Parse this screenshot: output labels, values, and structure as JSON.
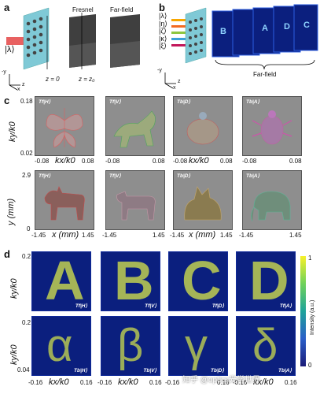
{
  "panels": {
    "a": {
      "letter": "a",
      "input_label": "|λ⟩",
      "plane_labels": [
        "Fresnel",
        "Far-field"
      ],
      "z_labels": [
        "z = 0",
        "z = z₀"
      ],
      "axes": [
        "-y",
        "x",
        "z"
      ]
    },
    "b": {
      "letter": "b",
      "input_states": [
        "|λ⟩",
        "|η⟩",
        "|ζ⟩",
        "|κ⟩",
        "|ξ⟩"
      ],
      "far_field_letters": [
        "A",
        "D",
        "C",
        "B"
      ],
      "far_field_label": "Far-field",
      "axes": [
        "-y",
        "x",
        "z"
      ]
    },
    "c": {
      "letter": "c",
      "row1": {
        "ylabel": "ky/k0",
        "yticks": [
          "0.18",
          "0.02"
        ],
        "xticks": [
          "-0.08",
          "0.08"
        ],
        "xlabel": "kx/k0",
        "tiles": [
          {
            "label": "Tf|H⟩",
            "name": "butterfly"
          },
          {
            "label": "Tf|V⟩",
            "name": "cat"
          },
          {
            "label": "Tb|D⟩",
            "name": "turtle"
          },
          {
            "label": "Tb|A⟩",
            "name": "beetle"
          }
        ]
      },
      "row2": {
        "ylabel": "y (mm)",
        "yticks": [
          "2.9",
          "0"
        ],
        "xticks": [
          "-1.45",
          "1.45"
        ],
        "xlabel": "x (mm)",
        "tiles": [
          {
            "label": "Tf|H⟩",
            "name": "dog"
          },
          {
            "label": "Tf|V⟩",
            "name": "sheep"
          },
          {
            "label": "Tb|D⟩",
            "name": "cat"
          },
          {
            "label": "Tb|A⟩",
            "name": "elephant"
          }
        ]
      }
    },
    "d": {
      "letter": "d",
      "row1": {
        "ylabel": "ky/k0",
        "yticks": [
          "0.2",
          "0.04"
        ],
        "tiles": [
          {
            "glyph": "A",
            "label": "Tf|H⟩"
          },
          {
            "glyph": "B",
            "label": "Tf|V⟩"
          },
          {
            "glyph": "C",
            "label": "Tf|D⟩"
          },
          {
            "glyph": "D",
            "label": "Tf|A⟩"
          }
        ]
      },
      "row2": {
        "ylabel": "ky/k0",
        "yticks": [
          "0.2",
          "0.04"
        ],
        "xticks": [
          "-0.16",
          "0.16"
        ],
        "xlabel": "kx/k0",
        "tiles": [
          {
            "glyph": "α",
            "label": "Tb|H⟩"
          },
          {
            "glyph": "β",
            "label": "Tb|V⟩"
          },
          {
            "glyph": "γ",
            "label": "Tb|D⟩"
          },
          {
            "glyph": "δ",
            "label": "Tb|A⟩"
          }
        ]
      },
      "colorbar": {
        "label": "Intensity (a.u.)",
        "max": "1",
        "min": "0"
      }
    },
    "watermark": "知乎 @optics光学世界"
  },
  "colors": {
    "tile_gray": "#8e8e8e",
    "tile_blue": "#0b1f7e",
    "glyph_yellow": "#d9e84a"
  }
}
